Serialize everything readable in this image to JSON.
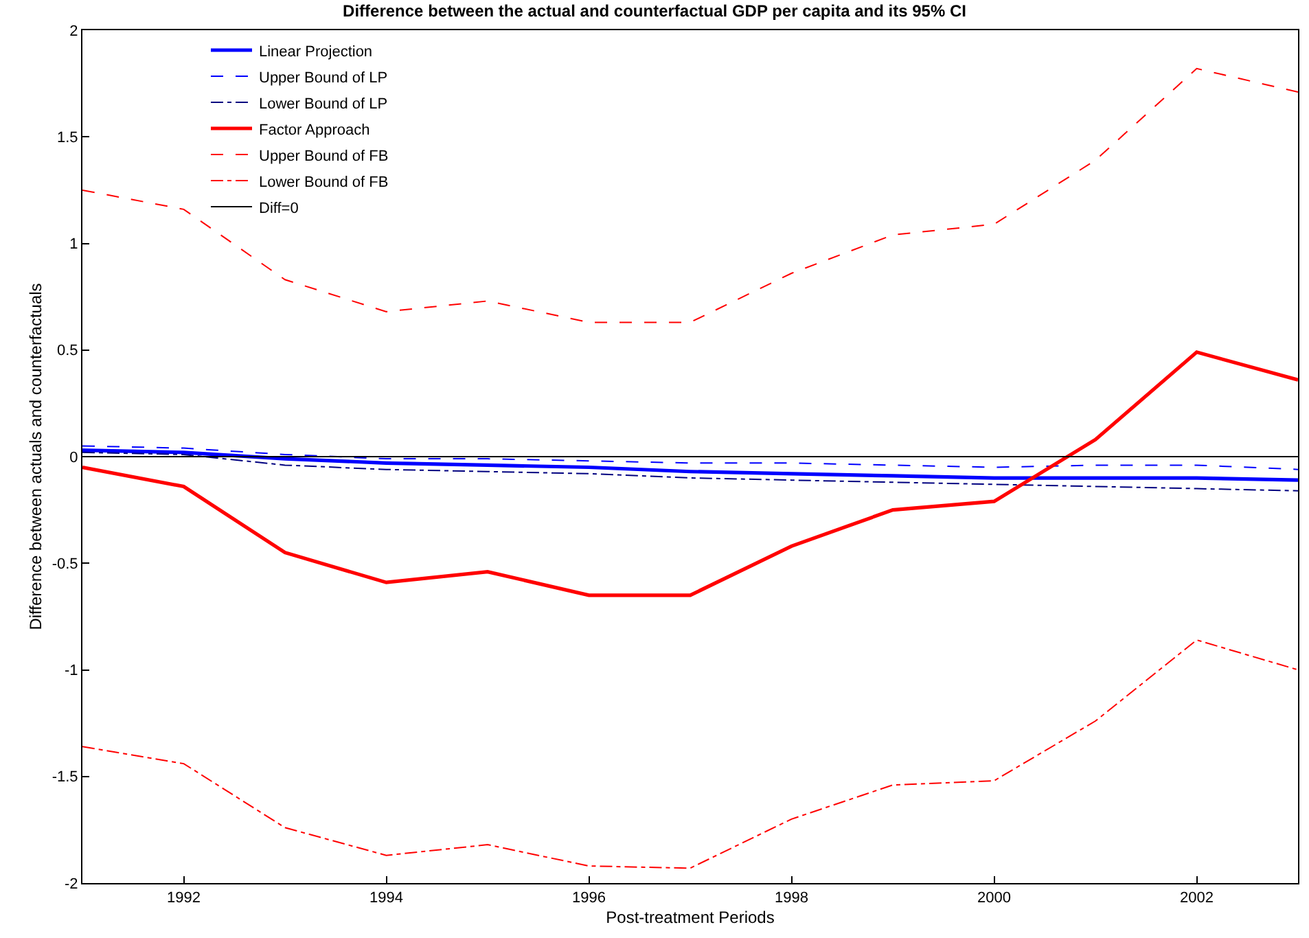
{
  "chart_data": {
    "type": "line",
    "title": "Difference between the actual and counterfactual GDP per capita and its 95% CI",
    "xlabel": "Post-treatment Periods",
    "ylabel": "Difference between actuals and counterfactuals",
    "x": [
      1991,
      1992,
      1993,
      1994,
      1995,
      1996,
      1997,
      1998,
      1999,
      2000,
      2001,
      2002,
      2003
    ],
    "series": [
      {
        "name": "Linear Projection",
        "color": "#0000ff",
        "line_style": "solid",
        "values": [
          0.03,
          0.02,
          -0.01,
          -0.03,
          -0.04,
          -0.05,
          -0.07,
          -0.08,
          -0.09,
          -0.1,
          -0.1,
          -0.1,
          -0.11
        ]
      },
      {
        "name": "Upper Bound of LP",
        "color": "#0000ff",
        "line_style": "dashed",
        "values": [
          0.05,
          0.04,
          0.01,
          -0.01,
          -0.01,
          -0.02,
          -0.03,
          -0.03,
          -0.04,
          -0.05,
          -0.04,
          -0.04,
          -0.06
        ]
      },
      {
        "name": "Lower Bound of LP",
        "color": "#00007f",
        "line_style": "dashdot",
        "values": [
          0.02,
          0.01,
          -0.04,
          -0.06,
          -0.07,
          -0.08,
          -0.1,
          -0.11,
          -0.12,
          -0.13,
          -0.14,
          -0.15,
          -0.16
        ]
      },
      {
        "name": "Factor Approach",
        "color": "#ff0000",
        "line_style": "solid",
        "values": [
          -0.05,
          -0.14,
          -0.45,
          -0.59,
          -0.54,
          -0.65,
          -0.65,
          -0.42,
          -0.25,
          -0.21,
          0.08,
          0.49,
          0.36
        ]
      },
      {
        "name": "Upper Bound of FB",
        "color": "#ff0000",
        "line_style": "dashed",
        "values": [
          1.25,
          1.16,
          0.83,
          0.68,
          0.73,
          0.63,
          0.63,
          0.86,
          1.04,
          1.09,
          1.39,
          1.82,
          1.71
        ]
      },
      {
        "name": "Lower Bound of FB",
        "color": "#ff0000",
        "line_style": "dashdot",
        "values": [
          -1.36,
          -1.44,
          -1.74,
          -1.87,
          -1.82,
          -1.92,
          -1.93,
          -1.7,
          -1.54,
          -1.52,
          -1.24,
          -0.86,
          -1.0
        ]
      },
      {
        "name": "Diff=0",
        "color": "#000000",
        "line_style": "solid",
        "values": [
          0,
          0,
          0,
          0,
          0,
          0,
          0,
          0,
          0,
          0,
          0,
          0,
          0
        ]
      }
    ],
    "xlim": [
      1991,
      2003
    ],
    "xticks": [
      1992,
      1994,
      1996,
      1998,
      2000,
      2002
    ],
    "ylim": [
      -2,
      2
    ],
    "yticks": [
      -2,
      -1.5,
      -1,
      -0.5,
      0,
      0.5,
      1,
      1.5,
      2
    ],
    "legend": "top left",
    "marker": "none"
  }
}
